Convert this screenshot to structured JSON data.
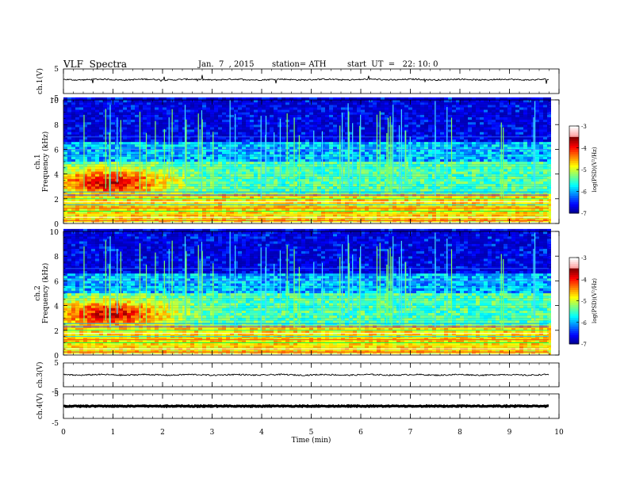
{
  "header": {
    "title": "VLF  Spectra",
    "date": "Jan.  7  , 2015",
    "station": "station= ATH",
    "start": "start  UT  =   22: 10: 0"
  },
  "chart_data": {
    "type": "heatmap",
    "xlabel": "Time  (min)",
    "xlim": [
      0,
      10
    ],
    "xticks": [
      "0",
      "1",
      "2",
      "3",
      "4",
      "5",
      "6",
      "7",
      "8",
      "9",
      "10"
    ],
    "panels": [
      {
        "ylabel": "ch.1(V)",
        "kind": "waveform",
        "ylim": [
          -5,
          5
        ],
        "ticks": [
          "5",
          "-5"
        ],
        "baseline": 0.3,
        "style": "thin"
      },
      {
        "ylabel": "ch.1\nFrequency  (kHz)",
        "kind": "spectrogram",
        "ylim": [
          0,
          10
        ],
        "ticks": [
          "0",
          "2",
          "4",
          "6",
          "8",
          "10"
        ],
        "colorbar": {
          "label": "log(PSD)(V²/Hz)",
          "range": [
            -7,
            -3
          ],
          "ticks": [
            "-3",
            "-4",
            "-5",
            "-6",
            "-7"
          ]
        }
      },
      {
        "ylabel": "ch.2\nFrequency  (kHz)",
        "kind": "spectrogram",
        "ylim": [
          0,
          10
        ],
        "ticks": [
          "0",
          "2",
          "4",
          "6",
          "8",
          "10"
        ],
        "colorbar": {
          "label": "log(PSD)(V²/Hz)",
          "range": [
            -7,
            -3
          ],
          "ticks": [
            "-3",
            "-4",
            "-5",
            "-6",
            "-7"
          ]
        }
      },
      {
        "ylabel": "ch.3(V)",
        "kind": "waveform",
        "ylim": [
          -5,
          5
        ],
        "ticks": [
          "5",
          "-5"
        ],
        "baseline": 0.0,
        "style": "thin"
      },
      {
        "ylabel": "ch.4(V)",
        "kind": "waveform",
        "ylim": [
          -5,
          5
        ],
        "ticks": [
          "5",
          "-5"
        ],
        "baseline": 0.0,
        "style": "thick"
      }
    ]
  }
}
